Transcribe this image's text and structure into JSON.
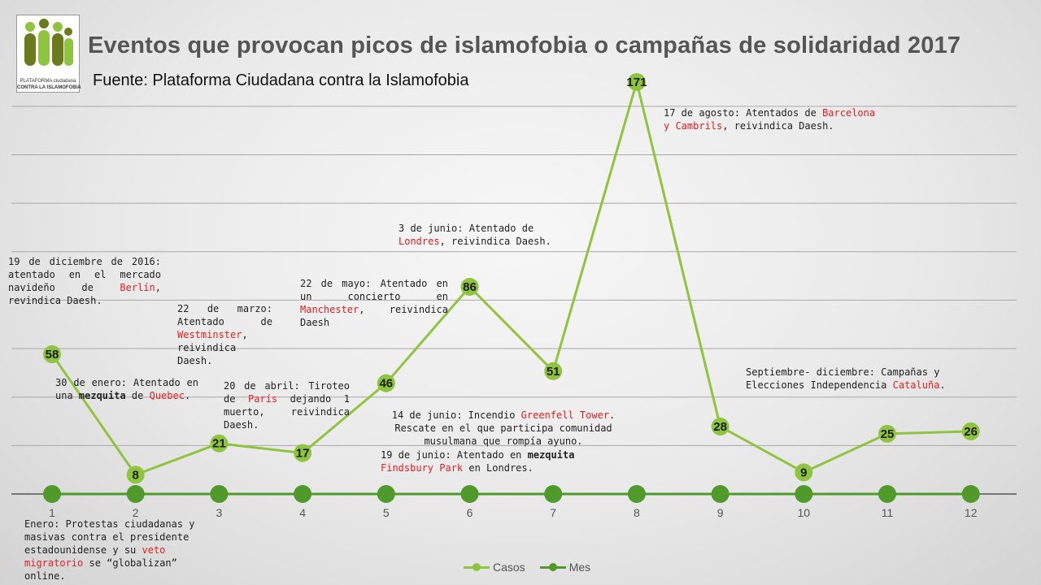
{
  "title": "Eventos que provocan picos de islamofobia o campañas de solidaridad 2017",
  "subtitle": "Fuente: Plataforma Ciudadana contra la Islamofobia",
  "logo": {
    "line1": "PLATAFORMA ciudadana",
    "line2": "CONTRA LA ISLAMOFOBIA"
  },
  "colors": {
    "casos": "#8fc43f",
    "mes": "#4f9a2a",
    "highlight": "#e02020",
    "gridline": "#a8a8a8",
    "axis": "#555555"
  },
  "chart_data": {
    "type": "line",
    "title": "Eventos que provocan picos de islamofobia o campañas de solidaridad 2017",
    "xlabel": "",
    "ylabel": "",
    "ylim": [
      0,
      175
    ],
    "grid": true,
    "legend": "bottom",
    "categories": [
      "1",
      "2",
      "3",
      "4",
      "5",
      "6",
      "7",
      "8",
      "9",
      "10",
      "11",
      "12"
    ],
    "series": [
      {
        "name": "Casos",
        "values": [
          58,
          8,
          21,
          17,
          46,
          86,
          51,
          171,
          28,
          9,
          25,
          26
        ]
      },
      {
        "name": "Mes",
        "values": [
          0,
          0,
          0,
          0,
          0,
          0,
          0,
          0,
          0,
          0,
          0,
          0
        ]
      }
    ]
  },
  "annotations": {
    "dec2016": {
      "text": "19 de diciembre de 2016: atentado en el mercado navideño de ",
      "place": "Berlín",
      "after": ", revindica Daesh."
    },
    "enero30": {
      "text": "30 de enero: Atentado en una ",
      "bold": "mezquita",
      "mid": " de ",
      "place": "Quebec",
      "after": "."
    },
    "marzo": {
      "text": "22 de marzo: Atentado de ",
      "place": "Westminster",
      "after": ", reivindica Daesh."
    },
    "abril": {
      "text": "20 de abril: Tiroteo de ",
      "place": "París",
      "after": " dejando 1 muerto, reivindica Daesh."
    },
    "mayo": {
      "text": "22 de mayo: Atentado en un concierto en ",
      "place": "Manchester",
      "after": ", reivindica Daesh"
    },
    "junio3": {
      "text": "3 de junio: Atentado de ",
      "place": "Londres",
      "after": ", reivindica Daesh."
    },
    "junio14": {
      "text": "14 de junio: Incendio ",
      "place": "Greenfell Tower",
      "after": ". Rescate en el que participa comunidad musulmana que rompía ayuno."
    },
    "junio19": {
      "text": "19 de junio: Atentado en ",
      "bold": "mezquita",
      "mid": " ",
      "place": "Findsbury Park",
      "after": " en Londres."
    },
    "agosto": {
      "text": "17 de agosto: Atentados de ",
      "place": "Barcelona y Cambrils",
      "after": ", reivindica Daesh."
    },
    "sept": {
      "text": "Septiembre- diciembre: Campañas y Elecciones Independencia ",
      "place": "Cataluña",
      "after": "."
    },
    "enero": {
      "text": "Enero: Protestas ciudadanas y masivas contra el presidente estadounidense y su ",
      "place": "veto migratorio",
      "after": " se “globalizan” online."
    }
  }
}
